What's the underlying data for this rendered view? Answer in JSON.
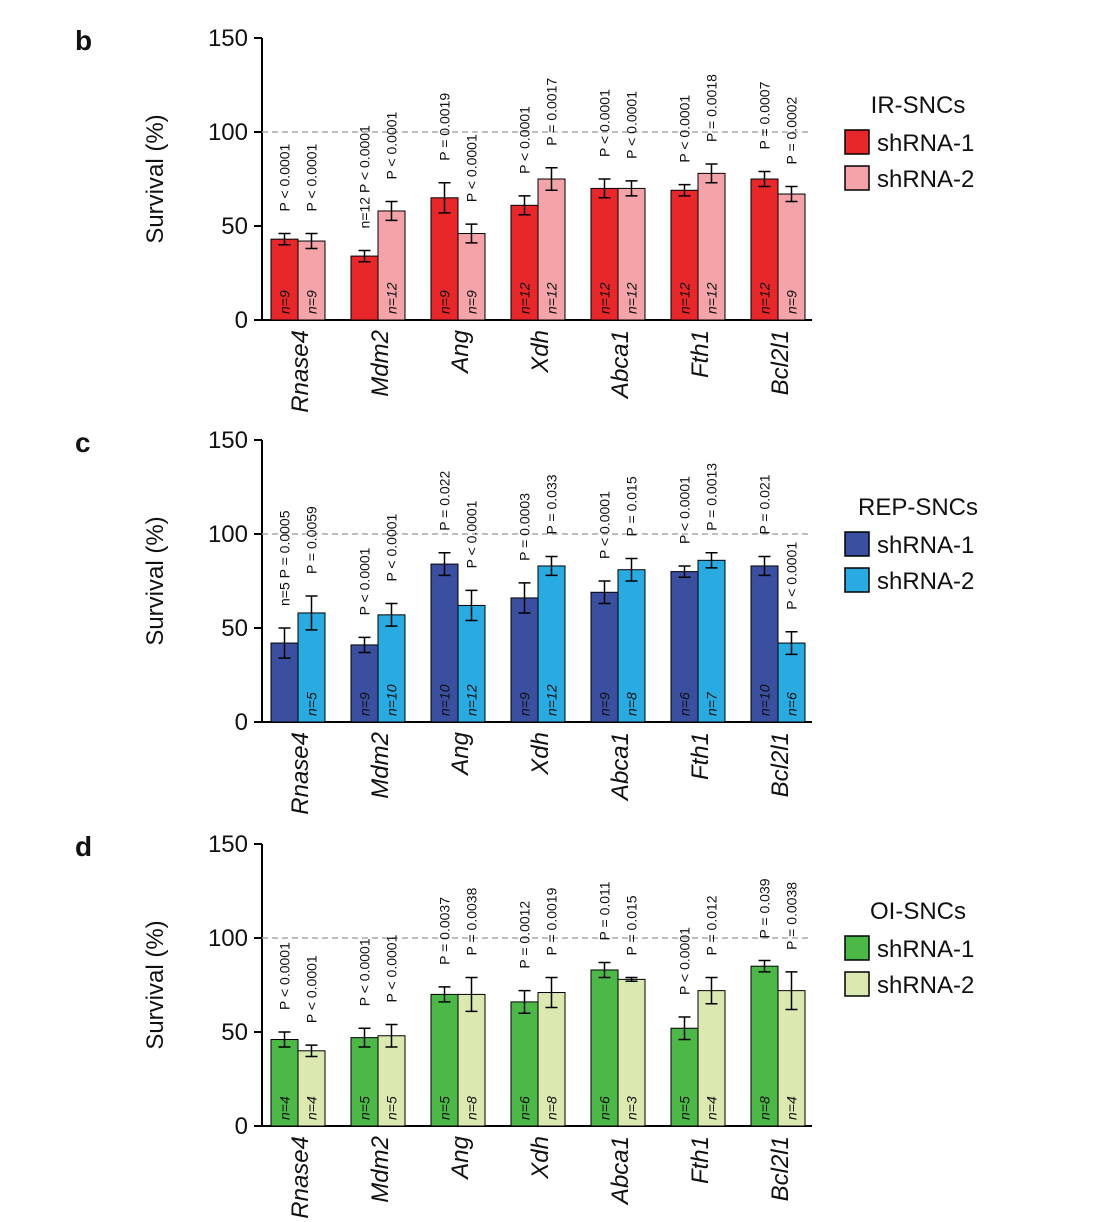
{
  "chart_data": [
    {
      "type": "bar",
      "panel": "b",
      "ylabel": "Survival (%)",
      "legend_title": "IR-SNCs",
      "legend_title_color": "#e8272a",
      "categories": [
        "Rnase4",
        "Mdm2",
        "Ang",
        "Xdh",
        "Abca1",
        "Fth1",
        "Bcl2l1"
      ],
      "ylim": [
        0,
        150
      ],
      "yticks": [
        0,
        50,
        100,
        150
      ],
      "ref_line": 100,
      "series": [
        {
          "name": "shRNA-1",
          "color": "#e8272a",
          "values": [
            43,
            34,
            65,
            61,
            70,
            69,
            75
          ],
          "errors": [
            3,
            3,
            8,
            5,
            5,
            3,
            4
          ],
          "n_labels": [
            "n=9",
            null,
            "n=9",
            "n=12",
            "n=12",
            "n=12",
            "n=12"
          ],
          "p_labels": [
            "P < 0.0001",
            "n=12  P < 0.0001",
            "P = 0.0019",
            "P < 0.0001",
            "P < 0.0001",
            "P < 0.0001",
            "P = 0.0007"
          ]
        },
        {
          "name": "shRNA-2",
          "color": "#f4a3a8",
          "values": [
            42,
            58,
            46,
            75,
            70,
            78,
            67
          ],
          "errors": [
            4,
            5,
            5,
            6,
            4,
            5,
            4
          ],
          "n_labels": [
            "n=9",
            "n=12",
            "n=9",
            "n=12",
            "n=12",
            "n=12",
            "n=9"
          ],
          "p_labels": [
            "P < 0.0001",
            "P < 0.0001",
            "P < 0.0001",
            "P = 0.0017",
            "P < 0.0001",
            "P = 0.0018",
            "P = 0.0002"
          ]
        }
      ]
    },
    {
      "type": "bar",
      "panel": "c",
      "ylabel": "Survival (%)",
      "legend_title": "REP-SNCs",
      "legend_title_color": "#3a4fa0",
      "categories": [
        "Rnase4",
        "Mdm2",
        "Ang",
        "Xdh",
        "Abca1",
        "Fth1",
        "Bcl2l1"
      ],
      "ylim": [
        0,
        150
      ],
      "yticks": [
        0,
        50,
        100,
        150
      ],
      "ref_line": 100,
      "series": [
        {
          "name": "shRNA-1",
          "color": "#3a4fa0",
          "values": [
            42,
            41,
            84,
            66,
            69,
            80,
            83
          ],
          "errors": [
            8,
            4,
            6,
            8,
            6,
            3,
            5
          ],
          "n_labels": [
            null,
            "n=9",
            "n=10",
            "n=9",
            "n=9",
            "n=6",
            "n=10"
          ],
          "p_labels": [
            "n=5  P = 0.0005",
            "P < 0.0001",
            "P = 0.022",
            "P = 0.0003",
            "P < 0.0001",
            "P < 0.0001",
            "P = 0.021"
          ]
        },
        {
          "name": "shRNA-2",
          "color": "#29abe2",
          "values": [
            58,
            57,
            62,
            83,
            81,
            86,
            42
          ],
          "errors": [
            9,
            6,
            8,
            5,
            6,
            4,
            6
          ],
          "n_labels": [
            "n=5",
            "n=10",
            "n=12",
            "n=12",
            "n=8",
            "n=7",
            "n=6"
          ],
          "p_labels": [
            "P = 0.0059",
            "P < 0.0001",
            "P < 0.0001",
            "P = 0.033",
            "P = 0.015",
            "P = 0.0013",
            "P < 0.0001"
          ]
        }
      ]
    },
    {
      "type": "bar",
      "panel": "d",
      "ylabel": "Survival (%)",
      "legend_title": "OI-SNCs",
      "legend_title_color": "#1db34a",
      "categories": [
        "Rnase4",
        "Mdm2",
        "Ang",
        "Xdh",
        "Abca1",
        "Fth1",
        "Bcl2l1"
      ],
      "ylim": [
        0,
        150
      ],
      "yticks": [
        0,
        50,
        100,
        150
      ],
      "ref_line": 100,
      "series": [
        {
          "name": "shRNA-1",
          "color": "#4cb848",
          "values": [
            46,
            47,
            70,
            66,
            83,
            52,
            85
          ],
          "errors": [
            4,
            5,
            4,
            6,
            4,
            6,
            3
          ],
          "n_labels": [
            "n=4",
            "n=5",
            "n=5",
            "n=6",
            "n=6",
            "n=5",
            "n=8"
          ],
          "p_labels": [
            "P < 0.0001",
            "P < 0.0001",
            "P = 0.0037",
            "P = 0.0012",
            "P = 0.011",
            "P < 0.0001",
            "P = 0.039"
          ]
        },
        {
          "name": "shRNA-2",
          "color": "#dbe8b0",
          "values": [
            40,
            48,
            70,
            71,
            78,
            72,
            72
          ],
          "errors": [
            3,
            6,
            9,
            8,
            1,
            7,
            10
          ],
          "n_labels": [
            "n=4",
            "n=5",
            "n=8",
            "n=8",
            "n=3",
            "n=4",
            "n=4"
          ],
          "p_labels": [
            "P < 0.0001",
            "P < 0.0001",
            "P = 0.0038",
            "P = 0.0019",
            "P = 0.015",
            "P = 0.012",
            "P = 0.0038"
          ]
        }
      ]
    }
  ]
}
